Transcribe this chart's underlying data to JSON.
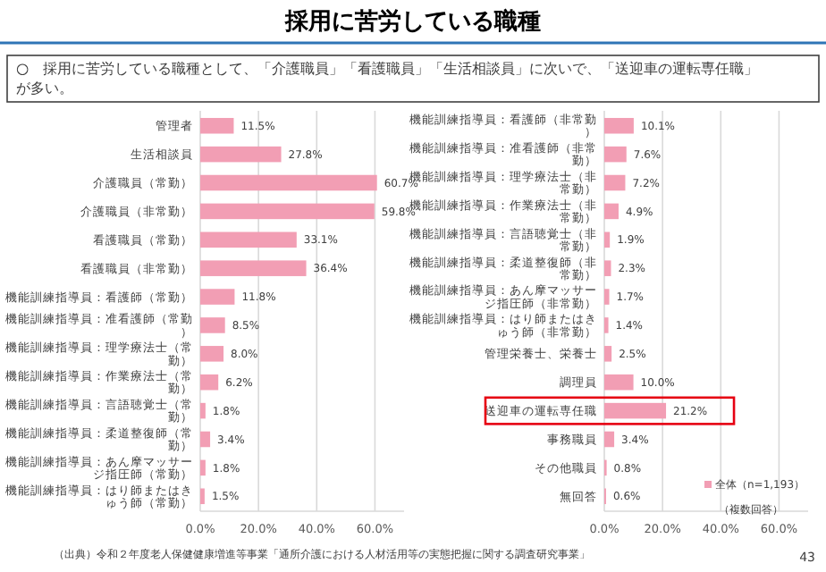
{
  "chart_data": [
    {
      "type": "bar",
      "orientation": "horizontal",
      "title": "採用に苦労している職種",
      "subtitle": "○　採用に苦労している職種として、「介護職員」「看護職員」「生活相談員」に次いで、「送迎車の運転専任職」が多い。",
      "categories": [
        "管理者",
        "生活相談員",
        "介護職員（常勤）",
        "介護職員（非常勤）",
        "看護職員（常勤）",
        "看護職員（非常勤）",
        "機能訓練指導員：看護師（常勤）",
        "機能訓練指導員：准看護師（常勤）",
        "機能訓練指導員：理学療法士（常勤）",
        "機能訓練指導員：作業療法士（常勤）",
        "機能訓練指導員：言語聴覚士（常勤）",
        "機能訓練指導員：柔道整復師（常勤）",
        "機能訓練指導員：あん摩マッサージ指圧師（常勤）",
        "機能訓練指導員：はり師またはきゅう師（常勤）"
      ],
      "series": [
        {
          "color": "#f29eb4",
          "values": [
            11.5,
            27.8,
            60.7,
            59.8,
            33.1,
            36.4,
            11.8,
            8.5,
            8.0,
            6.2,
            1.8,
            3.4,
            1.8,
            1.5
          ],
          "value_labels": [
            "11.5%",
            "27.8%",
            "60.7%",
            "59.8%",
            "33.1%",
            "36.4%",
            "11.8%",
            "8.5%",
            "8.0%",
            "6.2%",
            "1.8%",
            "3.4%",
            "1.8%",
            "1.5%"
          ]
        }
      ],
      "xlim": [
        0,
        70
      ],
      "xticks": [
        {
          "value": 0,
          "label": "0.0%"
        },
        {
          "value": 20,
          "label": "20.0%"
        },
        {
          "value": 40,
          "label": "40.0%"
        },
        {
          "value": 60,
          "label": "60.0%"
        }
      ],
      "grid": "x",
      "legend": false,
      "annotations": [
        "（出典）令和２年度老人保健健康増進等事業「通所介護における人材活用等の実態把握に関する調査研究事業」"
      ]
    },
    {
      "type": "bar",
      "orientation": "horizontal",
      "categories": [
        "機能訓練指導員：看護師（非常勤）",
        "機能訓練指導員：准看護師（非常勤）",
        "機能訓練指導員：理学療法士（非常勤）",
        "機能訓練指導員：作業療法士（非常勤）",
        "機能訓練指導員：言語聴覚士（非常勤）",
        "機能訓練指導員：柔道整復師（非常勤）",
        "機能訓練指導員：あん摩マッサージ指圧師（非常勤）",
        "機能訓練指導員：はり師またはきゅう師（非常勤）",
        "管理栄養士、栄養士",
        "調理員",
        "送迎車の運転専任職",
        "事務職員",
        "その他職員",
        "無回答"
      ],
      "series": [
        {
          "name": "全体（n=1,193）",
          "color": "#f29eb4",
          "values": [
            10.1,
            7.6,
            7.2,
            4.9,
            1.9,
            2.3,
            1.7,
            1.4,
            2.5,
            10.0,
            21.2,
            3.4,
            0.8,
            0.6
          ],
          "value_labels": [
            "10.1%",
            "7.6%",
            "7.2%",
            "4.9%",
            "1.9%",
            "2.3%",
            "1.7%",
            "1.4%",
            "2.5%",
            "10.0%",
            "21.2%",
            "3.4%",
            "0.8%",
            "0.6%"
          ]
        }
      ],
      "xlim": [
        0,
        70
      ],
      "xticks": [
        {
          "value": 0,
          "label": "0.0%"
        },
        {
          "value": 20,
          "label": "20.0%"
        },
        {
          "value": 40,
          "label": "40.0%"
        },
        {
          "value": 60,
          "label": "60.0%"
        }
      ],
      "grid": "x",
      "legend": "bottom right",
      "annotations": [
        "（複数回答）",
        "43"
      ]
    }
  ]
}
